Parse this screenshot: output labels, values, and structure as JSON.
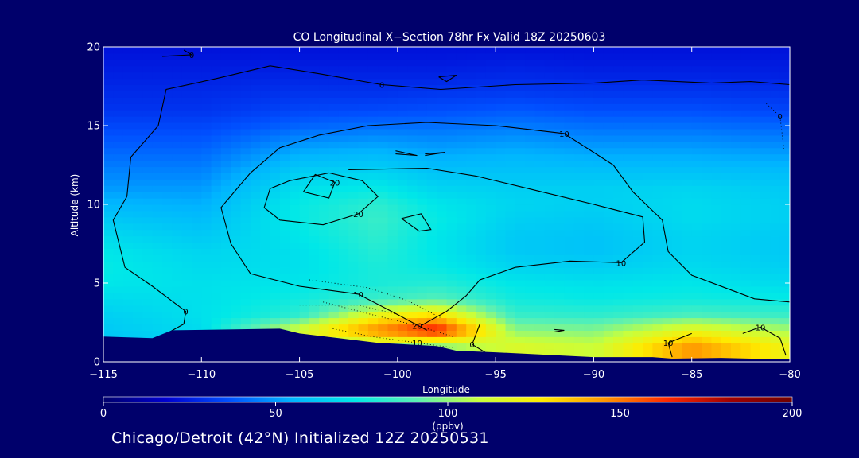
{
  "chart_data": {
    "type": "heatmap",
    "title": "CO Longitudinal X−Section 78hr  Fx Valid 18Z 20250603",
    "xlabel": "Longitude",
    "ylabel": "Altitude (km)",
    "xlim": [
      -115,
      -80
    ],
    "ylim": [
      0,
      20
    ],
    "x_ticks": [
      -115,
      -110,
      -105,
      -100,
      -95,
      -90,
      -85,
      -80
    ],
    "x_tick_labels": [
      "−115",
      "−110",
      "−105",
      "−100",
      "−95",
      "−90",
      "−85",
      "−80"
    ],
    "y_ticks": [
      0,
      5,
      10,
      15,
      20
    ],
    "y_tick_labels": [
      "0",
      "5",
      "10",
      "15",
      "20"
    ],
    "colorbar": {
      "min": 0,
      "max": 200,
      "ticks": [
        0,
        50,
        100,
        150,
        200
      ],
      "tick_labels": [
        "0",
        "50",
        "100",
        "150",
        "200"
      ],
      "units": "(ppbv)",
      "colors": [
        "#00006b",
        "#0000d0",
        "#0050ff",
        "#00b4ff",
        "#00e8e8",
        "#5af0b4",
        "#c8ff3c",
        "#ffeb00",
        "#ff9600",
        "#ff2800",
        "#a00000",
        "#6e0000"
      ]
    },
    "column_profiles": [
      {
        "lon": -115,
        "vals": [
          60,
          60,
          62,
          64,
          68,
          72,
          74,
          72,
          68,
          62,
          56,
          50,
          46,
          42,
          38,
          34,
          30,
          28,
          26,
          24,
          22
        ]
      },
      {
        "lon": -110,
        "vals": [
          60,
          60,
          68,
          70,
          70,
          70,
          68,
          66,
          62,
          58,
          54,
          50,
          46,
          42,
          38,
          34,
          30,
          28,
          26,
          24,
          22
        ]
      },
      {
        "lon": -105,
        "vals": [
          100,
          100,
          115,
          82,
          76,
          72,
          70,
          70,
          72,
          74,
          74,
          70,
          64,
          56,
          48,
          40,
          34,
          30,
          27,
          24,
          22
        ]
      },
      {
        "lon": -101,
        "vals": [
          100,
          100,
          150,
          120,
          84,
          78,
          78,
          80,
          82,
          84,
          82,
          74,
          66,
          58,
          50,
          42,
          35,
          30,
          27,
          24,
          22
        ]
      },
      {
        "lon": -98,
        "vals": [
          100,
          100,
          170,
          130,
          90,
          80,
          74,
          72,
          72,
          74,
          72,
          66,
          60,
          54,
          48,
          42,
          36,
          31,
          27,
          24,
          22
        ]
      },
      {
        "lon": -94,
        "vals": [
          115,
          115,
          100,
          84,
          76,
          72,
          66,
          62,
          62,
          64,
          66,
          64,
          60,
          56,
          50,
          44,
          38,
          32,
          28,
          25,
          22
        ]
      },
      {
        "lon": -90,
        "vals": [
          110,
          110,
          98,
          82,
          74,
          70,
          64,
          60,
          60,
          62,
          64,
          64,
          60,
          54,
          48,
          42,
          36,
          31,
          27,
          24,
          22
        ]
      },
      {
        "lon": -85,
        "vals": [
          145,
          145,
          120,
          88,
          76,
          72,
          68,
          66,
          66,
          68,
          68,
          66,
          60,
          54,
          48,
          42,
          36,
          31,
          27,
          24,
          22
        ]
      },
      {
        "lon": -80,
        "vals": [
          120,
          120,
          104,
          84,
          74,
          68,
          64,
          62,
          62,
          64,
          64,
          62,
          58,
          52,
          46,
          40,
          34,
          30,
          26,
          24,
          22
        ]
      }
    ],
    "contours": [
      {
        "label": "0",
        "style": "solid",
        "points": [
          [
            -113.8,
            10.5
          ],
          [
            -114.5,
            9
          ],
          [
            -113.9,
            6
          ],
          [
            -112.5,
            4.8
          ],
          [
            -110.8,
            3.2
          ],
          [
            -110.9,
            2.4
          ],
          [
            -112.2,
            1.5
          ],
          [
            -112.2,
            1.3
          ]
        ]
      },
      {
        "label": "0",
        "style": "solid",
        "points": [
          [
            -113.8,
            10.5
          ],
          [
            -113.6,
            13
          ],
          [
            -112.2,
            15
          ],
          [
            -111.8,
            17.3
          ],
          [
            -109.2,
            18
          ],
          [
            -106.5,
            18.8
          ],
          [
            -104,
            18.3
          ],
          [
            -100.8,
            17.6
          ],
          [
            -97.8,
            17.3
          ],
          [
            -94,
            17.6
          ],
          [
            -90,
            17.7
          ],
          [
            -87.5,
            17.9
          ],
          [
            -84,
            17.7
          ],
          [
            -82,
            17.8
          ],
          [
            -80,
            17.6
          ]
        ]
      },
      {
        "label": "0",
        "style": "solid",
        "points": [
          [
            -110.9,
            19.8
          ],
          [
            -110.5,
            19.5
          ],
          [
            -112,
            19.4
          ]
        ]
      },
      {
        "label": "10",
        "style": "solid",
        "points": [
          [
            -108.5,
            7.5
          ],
          [
            -109,
            9.8
          ],
          [
            -107.5,
            12
          ],
          [
            -106,
            13.6
          ],
          [
            -104,
            14.4
          ],
          [
            -101.5,
            15
          ],
          [
            -98.5,
            15.2
          ],
          [
            -95,
            15
          ],
          [
            -91.5,
            14.5
          ],
          [
            -89,
            12.5
          ],
          [
            -88,
            10.8
          ],
          [
            -86.5,
            9
          ],
          [
            -86.2,
            7
          ],
          [
            -85,
            5.5
          ],
          [
            -81.8,
            4
          ],
          [
            -80,
            3.8
          ]
        ]
      },
      {
        "label": "10",
        "style": "solid",
        "points": [
          [
            -108.5,
            7.5
          ],
          [
            -107.5,
            5.6
          ],
          [
            -105,
            4.8
          ],
          [
            -102,
            4.3
          ],
          [
            -100,
            3
          ],
          [
            -98.5,
            2
          ]
        ]
      },
      {
        "label": "10",
        "style": "solid",
        "points": [
          [
            -102.5,
            12.2
          ],
          [
            -98.5,
            12.3
          ],
          [
            -96,
            11.8
          ],
          [
            -93,
            10.9
          ],
          [
            -90,
            10
          ],
          [
            -87.5,
            9.2
          ],
          [
            -87.4,
            7.6
          ],
          [
            -88.6,
            6.3
          ],
          [
            -91.2,
            6.4
          ],
          [
            -94,
            6
          ],
          [
            -95.8,
            5.2
          ],
          [
            -96.5,
            4.2
          ],
          [
            -97.5,
            3.2
          ],
          [
            -98.8,
            2.3
          ]
        ]
      },
      {
        "label": "20",
        "style": "solid",
        "points": [
          [
            -105.5,
            11.5
          ],
          [
            -106.5,
            11
          ],
          [
            -106.8,
            9.8
          ],
          [
            -106,
            9
          ],
          [
            -103.8,
            8.7
          ],
          [
            -102,
            9.4
          ],
          [
            -101,
            10.5
          ],
          [
            -101.8,
            11.5
          ],
          [
            -103.5,
            12
          ],
          [
            -105.5,
            11.5
          ]
        ]
      },
      {
        "label": "20",
        "style": "solid",
        "points": [
          [
            -104.8,
            10.8
          ],
          [
            -104.2,
            11.9
          ],
          [
            -103.2,
            11.4
          ],
          [
            -103.5,
            10.4
          ],
          [
            -104.8,
            10.8
          ]
        ]
      },
      {
        "label": "",
        "style": "solid",
        "points": [
          [
            -99.8,
            9.1
          ],
          [
            -98.8,
            9.4
          ],
          [
            -98.3,
            8.4
          ],
          [
            -98.9,
            8.3
          ],
          [
            -99.8,
            9.1
          ]
        ]
      },
      {
        "label": "",
        "style": "solid",
        "points": [
          [
            -100.1,
            13.4
          ],
          [
            -99,
            13.1
          ],
          [
            -100.1,
            13.2
          ]
        ]
      },
      {
        "label": "",
        "style": "solid",
        "points": [
          [
            -98.6,
            13.2
          ],
          [
            -97.6,
            13.3
          ],
          [
            -98.6,
            13.1
          ]
        ]
      },
      {
        "label": "",
        "style": "solid",
        "points": [
          [
            -97.9,
            18.1
          ],
          [
            -97,
            18.2
          ],
          [
            -97.5,
            17.8
          ],
          [
            -97.9,
            18.1
          ]
        ]
      },
      {
        "label": "",
        "style": "solid",
        "points": [
          [
            -92,
            1.9
          ],
          [
            -91.5,
            2
          ],
          [
            -92,
            2.05
          ]
        ]
      },
      {
        "label": "10",
        "style": "solid",
        "points": [
          [
            -80.2,
            0.4
          ],
          [
            -80.5,
            1.5
          ],
          [
            -81.5,
            2.2
          ],
          [
            -82.4,
            1.8
          ]
        ]
      },
      {
        "label": "10",
        "style": "solid",
        "points": [
          [
            -86,
            0.3
          ],
          [
            -86.2,
            1.2
          ],
          [
            -85,
            1.8
          ]
        ]
      },
      {
        "label": "0",
        "style": "solid",
        "points": [
          [
            -95.4,
            0.5
          ],
          [
            -96.2,
            1.1
          ],
          [
            -95.8,
            2.4
          ]
        ]
      },
      {
        "label": "0",
        "style": "dotted",
        "points": [
          [
            -81.2,
            16.4
          ],
          [
            -80.5,
            15.6
          ],
          [
            -80.3,
            13.5
          ]
        ]
      },
      {
        "label": "10",
        "style": "dotted",
        "points": [
          [
            -103.3,
            2.1
          ],
          [
            -101.3,
            1.6
          ],
          [
            -99,
            1.2
          ],
          [
            -97.2,
            0.9
          ]
        ]
      },
      {
        "label": "20",
        "style": "dotted",
        "points": [
          [
            -103.8,
            3.8
          ],
          [
            -101,
            2.9
          ],
          [
            -99,
            2.3
          ],
          [
            -97.2,
            1.6
          ]
        ]
      },
      {
        "label": "",
        "style": "dotted",
        "points": [
          [
            -105,
            3.6
          ],
          [
            -102,
            3.6
          ],
          [
            -100,
            3
          ]
        ]
      },
      {
        "label": "",
        "style": "dotted",
        "points": [
          [
            -104.5,
            5.2
          ],
          [
            -101.5,
            4.7
          ],
          [
            -99.5,
            3.9
          ],
          [
            -97.8,
            2.8
          ]
        ]
      }
    ],
    "terrain_km": [
      [
        -115,
        1.6
      ],
      [
        -112.5,
        1.5
      ],
      [
        -111.5,
        2.0
      ],
      [
        -106,
        2.1
      ],
      [
        -105,
        1.8
      ],
      [
        -103,
        1.5
      ],
      [
        -101,
        1.2
      ],
      [
        -98,
        1.0
      ],
      [
        -97,
        0.7
      ],
      [
        -95,
        0.6
      ],
      [
        -90,
        0.3
      ],
      [
        -87,
        0.3
      ],
      [
        -86,
        0.2
      ],
      [
        -83.5,
        0.25
      ],
      [
        -82,
        0.2
      ],
      [
        -80,
        0.2
      ]
    ]
  },
  "footer": {
    "location_text": "Chicago/Detroit (42°N) Initialized 12Z 20250531"
  }
}
